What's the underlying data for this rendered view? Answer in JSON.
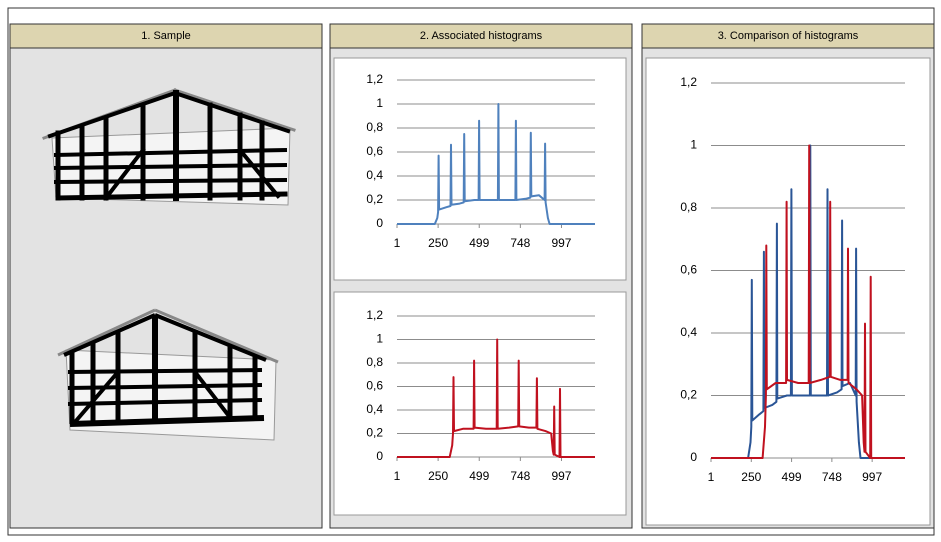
{
  "panels": [
    "1. Sample",
    "2. Associated histograms",
    "3. Comparison of histograms"
  ],
  "chart_data": [
    {
      "type": "line",
      "grid": true,
      "xlim": [
        1,
        1200
      ],
      "ylim": [
        0,
        1.2
      ],
      "xticks": [
        1,
        250,
        499,
        748,
        997
      ],
      "yticks": [
        0,
        {
          "value": 0.2,
          "label": "0,2"
        },
        {
          "value": 0.4,
          "label": "0,4"
        },
        {
          "value": 0.6,
          "label": "0,6"
        },
        {
          "value": 0.8,
          "label": "0,8"
        },
        1,
        {
          "value": 1.2,
          "label": "1,2"
        }
      ],
      "series": [
        {
          "color": "#4f81bd",
          "x": [
            1,
            230,
            245,
            250,
            253,
            256,
            300,
            325,
            328,
            331,
            380,
            405,
            408,
            411,
            470,
            495,
            498,
            501,
            580,
            612,
            615,
            618,
            690,
            718,
            721,
            724,
            780,
            808,
            811,
            814,
            860,
            895,
            898,
            901,
            915,
            925,
            1200
          ],
          "values": [
            0,
            0,
            0.05,
            0.1,
            0.57,
            0.12,
            0.14,
            0.15,
            0.66,
            0.16,
            0.17,
            0.18,
            0.75,
            0.19,
            0.2,
            0.2,
            0.86,
            0.2,
            0.2,
            0.2,
            1.0,
            0.2,
            0.2,
            0.2,
            0.86,
            0.2,
            0.21,
            0.22,
            0.76,
            0.23,
            0.24,
            0.2,
            0.67,
            0.18,
            0.05,
            0,
            0
          ]
        }
      ]
    },
    {
      "type": "line",
      "grid": true,
      "xlim": [
        1,
        1200
      ],
      "ylim": [
        0,
        1.2
      ],
      "xticks": [
        1,
        250,
        499,
        748,
        997
      ],
      "yticks": [
        0,
        {
          "value": 0.2,
          "label": "0,2"
        },
        {
          "value": 0.4,
          "label": "0,4"
        },
        {
          "value": 0.6,
          "label": "0,6"
        },
        {
          "value": 0.8,
          "label": "0,8"
        },
        1,
        {
          "value": 1.2,
          "label": "1,2"
        }
      ],
      "series": [
        {
          "color": "#c0111f",
          "x": [
            1,
            320,
            335,
            340,
            343,
            346,
            400,
            465,
            468,
            471,
            540,
            605,
            608,
            611,
            680,
            735,
            738,
            741,
            800,
            845,
            848,
            851,
            900,
            935,
            945,
            950,
            953,
            956,
            985,
            988,
            991,
            1200
          ],
          "values": [
            0,
            0,
            0.1,
            0.2,
            0.68,
            0.22,
            0.24,
            0.24,
            0.82,
            0.25,
            0.24,
            0.24,
            1.0,
            0.24,
            0.25,
            0.26,
            0.82,
            0.26,
            0.25,
            0.25,
            0.67,
            0.24,
            0.22,
            0.2,
            0.05,
            0.02,
            0.43,
            0.02,
            0,
            0.58,
            0,
            0
          ]
        }
      ]
    },
    {
      "type": "line",
      "grid": true,
      "xlim": [
        1,
        1200
      ],
      "ylim": [
        0,
        1.2
      ],
      "xticks": [
        1,
        250,
        499,
        748,
        997
      ],
      "yticks": [
        0,
        {
          "value": 0.2,
          "label": "0,2"
        },
        {
          "value": 0.4,
          "label": "0,4"
        },
        {
          "value": 0.6,
          "label": "0,6"
        },
        {
          "value": 0.8,
          "label": "0,8"
        },
        1,
        {
          "value": 1.2,
          "label": "1,2"
        }
      ],
      "series": [
        {
          "color": "#2a5596",
          "x": [
            1,
            230,
            245,
            250,
            253,
            256,
            300,
            325,
            328,
            331,
            380,
            405,
            408,
            411,
            470,
            495,
            498,
            501,
            580,
            612,
            615,
            618,
            690,
            718,
            721,
            724,
            780,
            808,
            811,
            814,
            860,
            895,
            898,
            901,
            915,
            925,
            1200
          ],
          "values": [
            0,
            0,
            0.05,
            0.1,
            0.57,
            0.12,
            0.14,
            0.15,
            0.66,
            0.16,
            0.17,
            0.18,
            0.75,
            0.19,
            0.2,
            0.2,
            0.86,
            0.2,
            0.2,
            0.2,
            1.0,
            0.2,
            0.2,
            0.2,
            0.86,
            0.2,
            0.21,
            0.22,
            0.76,
            0.23,
            0.24,
            0.2,
            0.67,
            0.18,
            0.05,
            0,
            0
          ]
        },
        {
          "color": "#c0111f",
          "x": [
            1,
            320,
            335,
            340,
            343,
            346,
            400,
            465,
            468,
            471,
            540,
            605,
            608,
            611,
            680,
            735,
            738,
            741,
            800,
            845,
            848,
            851,
            900,
            935,
            945,
            950,
            953,
            956,
            985,
            988,
            991,
            1200
          ],
          "values": [
            0,
            0,
            0.1,
            0.2,
            0.68,
            0.22,
            0.24,
            0.24,
            0.82,
            0.25,
            0.24,
            0.24,
            1.0,
            0.24,
            0.25,
            0.26,
            0.82,
            0.26,
            0.25,
            0.25,
            0.67,
            0.24,
            0.22,
            0.2,
            0.05,
            0.02,
            0.43,
            0.02,
            0,
            0.58,
            0,
            0
          ]
        }
      ]
    }
  ]
}
